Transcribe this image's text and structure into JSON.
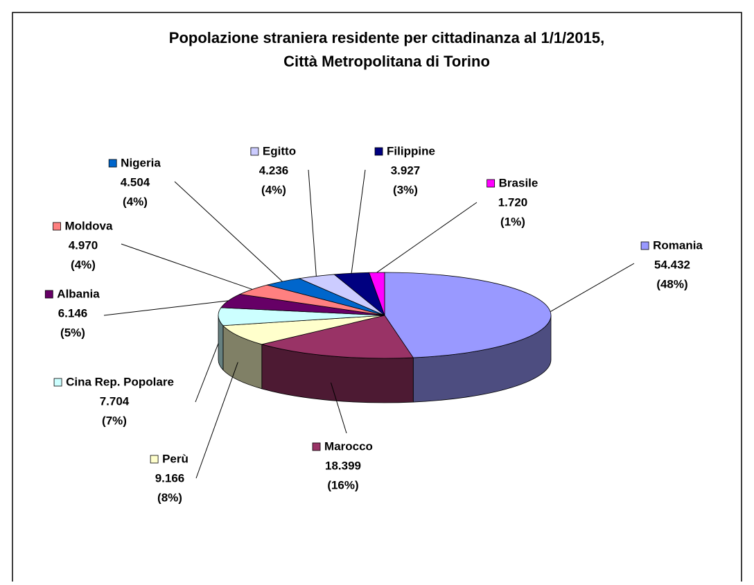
{
  "chart_data": {
    "type": "pie3d",
    "title": "Popolazione straniera residente per cittadinanza al 1/1/2015,",
    "subtitle": "Città Metropolitana di Torino",
    "categories": [
      "Romania",
      "Marocco",
      "Perù",
      "Cina Rep. Popolare",
      "Albania",
      "Moldova",
      "Nigeria",
      "Egitto",
      "Filippine",
      "Brasile"
    ],
    "values": [
      54432,
      18399,
      9166,
      7704,
      6146,
      4970,
      4504,
      4236,
      3927,
      1720
    ],
    "value_labels": [
      "54.432",
      "18.399",
      "9.166",
      "7.704",
      "6.146",
      "4.970",
      "4.504",
      "4.236",
      "3.927",
      "1.720"
    ],
    "percent_labels": [
      "(48%)",
      "(16%)",
      "(8%)",
      "(7%)",
      "(5%)",
      "(4%)",
      "(4%)",
      "(4%)",
      "(3%)",
      "(1%)"
    ],
    "colors": [
      "#9999ff",
      "#993366",
      "#ffffcc",
      "#ccffff",
      "#660066",
      "#ff8080",
      "#0066cc",
      "#ccccff",
      "#000080",
      "#ff00ff"
    ]
  }
}
